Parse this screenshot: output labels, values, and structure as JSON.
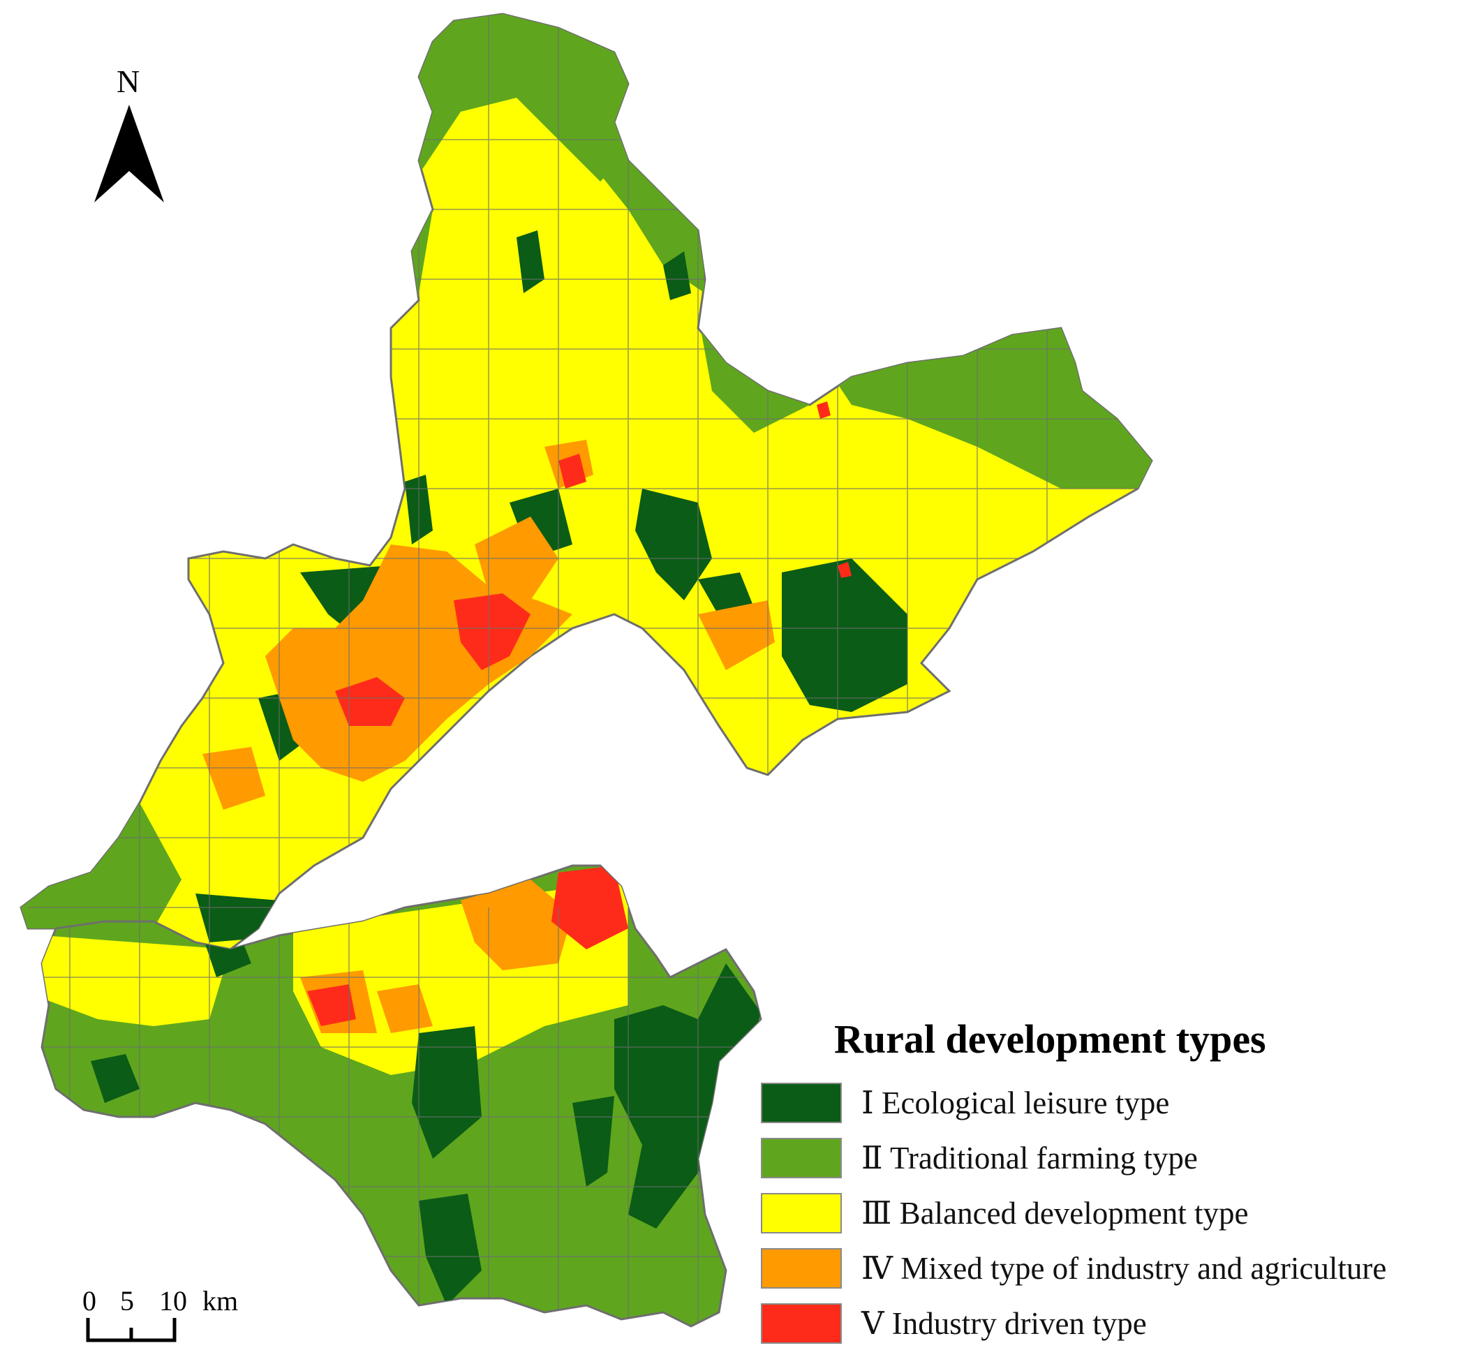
{
  "north_arrow": {
    "label": "N",
    "icon": "north-arrow-icon"
  },
  "legend": {
    "title": "Rural development types",
    "items": [
      {
        "numeral": "Ⅰ",
        "label": "Ecological leisure type",
        "color": "#0b5c16"
      },
      {
        "numeral": "Ⅱ",
        "label": "Traditional farming type",
        "color": "#5fa61e"
      },
      {
        "numeral": "Ⅲ",
        "label": "Balanced development type",
        "color": "#ffff00"
      },
      {
        "numeral": "Ⅳ",
        "label": "Mixed type of industry and agriculture",
        "color": "#ff9a00"
      },
      {
        "numeral": "Ⅴ",
        "label": "Industry driven type",
        "color": "#ff2b1a"
      }
    ]
  },
  "scale_bar": {
    "ticks": [
      "0",
      "5",
      "10"
    ],
    "unit": "km"
  },
  "boundary_color": "#6e6e6e"
}
